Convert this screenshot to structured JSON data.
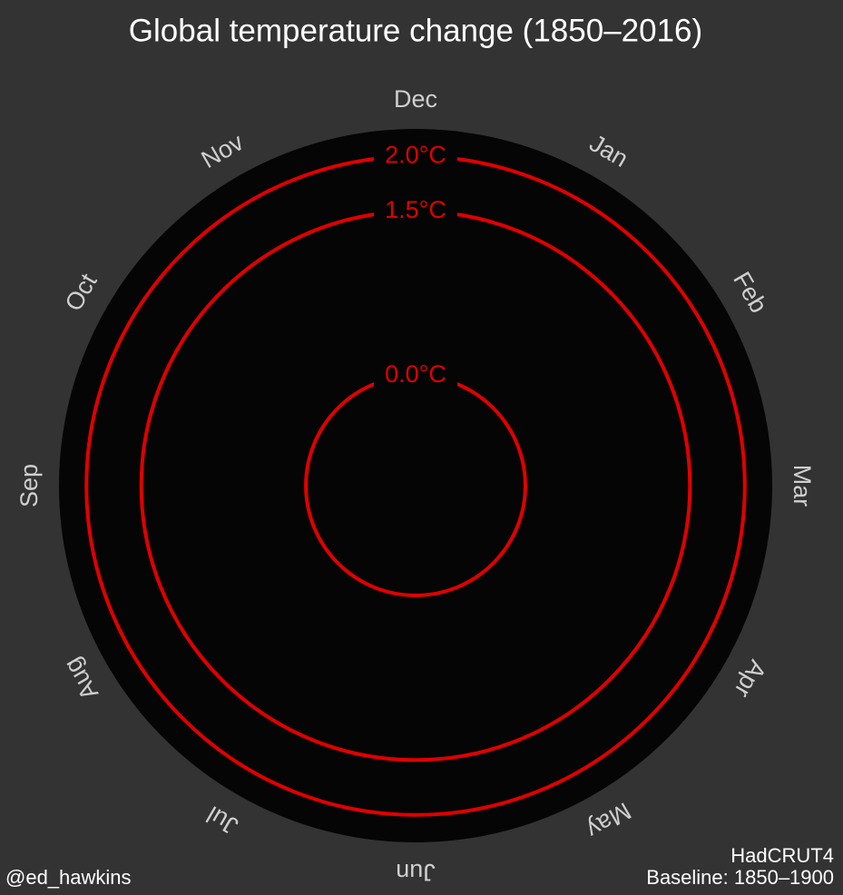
{
  "chart_data": {
    "type": "polar",
    "title": "Global temperature change (1850–2016)",
    "categories": [
      "Jan",
      "Feb",
      "Mar",
      "Apr",
      "May",
      "Jun",
      "Jul",
      "Aug",
      "Sep",
      "Oct",
      "Nov",
      "Dec"
    ],
    "rlim": [
      -1,
      2.25
    ],
    "rticks": [
      {
        "value": 0,
        "label": "0.0°C"
      },
      {
        "value": 1.5,
        "label": "1.5°C"
      },
      {
        "value": 2,
        "label": "2.0°C"
      }
    ],
    "ring_color": "#e00000",
    "credit": "@ed_hawkins",
    "source": "HadCRUT4",
    "baseline": "Baseline: 1850–1900"
  }
}
